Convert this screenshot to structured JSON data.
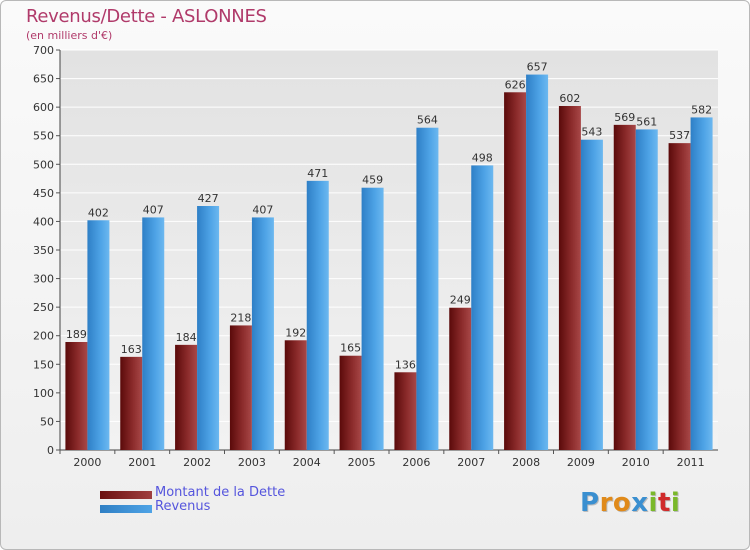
{
  "chart_data": {
    "type": "bar",
    "title": "Revenus/Dette - ASLONNES",
    "subtitle": "(en milliers d'€)",
    "categories": [
      "2000",
      "2001",
      "2002",
      "2003",
      "2004",
      "2005",
      "2006",
      "2007",
      "2008",
      "2009",
      "2010",
      "2011"
    ],
    "series": [
      {
        "name": "Montant de la Dette",
        "color": "#6b1010",
        "values": [
          189,
          163,
          184,
          218,
          192,
          165,
          136,
          249,
          626,
          602,
          569,
          537
        ]
      },
      {
        "name": "Revenus",
        "color": "#4ea3e6",
        "values": [
          402,
          407,
          427,
          407,
          471,
          459,
          564,
          498,
          657,
          543,
          561,
          582
        ]
      }
    ],
    "ylim": [
      0,
      700
    ],
    "yticks": [
      0,
      50,
      100,
      150,
      200,
      250,
      300,
      350,
      400,
      450,
      500,
      550,
      600,
      650,
      700
    ],
    "grid": true,
    "legend": "bottom-left"
  },
  "legend": {
    "debt_label": "Montant de la Dette",
    "revenue_label": "Revenus",
    "debt_color": "#6b1010",
    "revenue_color": "#4ea3e6"
  },
  "brand": {
    "letters": [
      "P",
      "r",
      "o",
      "x",
      "i",
      "t",
      "i"
    ],
    "colors": [
      "#3a8fd0",
      "#e08a1a",
      "#e08a1a",
      "#3a8fd0",
      "#7ab82a",
      "#d02a2a",
      "#7ab82a"
    ]
  }
}
